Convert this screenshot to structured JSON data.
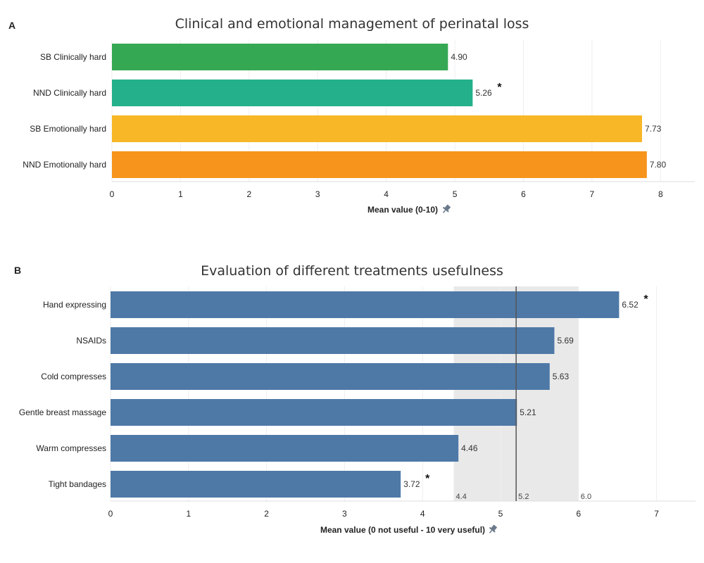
{
  "chart_data": [
    {
      "panel": "A",
      "type": "bar",
      "orientation": "horizontal",
      "title": "Clinical and emotional management of perinatal loss",
      "xlabel": "Mean value (0-10)",
      "xlim": [
        0,
        8.5
      ],
      "xticks": [
        0,
        1,
        2,
        3,
        4,
        5,
        6,
        7,
        8
      ],
      "categories": [
        "SB Clinically hard",
        "NND Clinically hard",
        "SB Emotionally hard",
        "NND Emotionally hard"
      ],
      "values": [
        4.9,
        5.26,
        7.73,
        7.8
      ],
      "value_labels": [
        "4.90",
        "5.26",
        "7.73",
        "7.80"
      ],
      "significant": [
        false,
        true,
        false,
        false
      ],
      "colors": [
        "#35a853",
        "#23b08a",
        "#f7b727",
        "#f6941c"
      ],
      "asterisk": "*"
    },
    {
      "panel": "B",
      "type": "bar",
      "orientation": "horizontal",
      "title": "Evaluation of different treatments usefulness",
      "xlabel": "Mean value (0 not useful - 10 very useful)",
      "xlim": [
        0,
        7.5
      ],
      "xticks": [
        0,
        1,
        2,
        3,
        4,
        5,
        6,
        7
      ],
      "categories": [
        "Hand expressing",
        "NSAIDs",
        "Cold compresses",
        "Gentle breast massage",
        "Warm compresses",
        "Tight bandages"
      ],
      "values": [
        6.52,
        5.69,
        5.63,
        5.21,
        4.46,
        3.72
      ],
      "value_labels": [
        "6.52",
        "5.69",
        "5.63",
        "5.21",
        "4.46",
        "3.72"
      ],
      "significant": [
        true,
        false,
        false,
        false,
        false,
        true
      ],
      "colors": [
        "#4e79a7"
      ],
      "asterisk": "*",
      "reference_band": {
        "low": 4.4,
        "mean": 5.2,
        "high": 6.0,
        "low_label": "4.4",
        "mean_label": "5.2",
        "high_label": "6.0",
        "band_color": "#e9e9e9",
        "line_color": "#555555"
      }
    }
  ]
}
